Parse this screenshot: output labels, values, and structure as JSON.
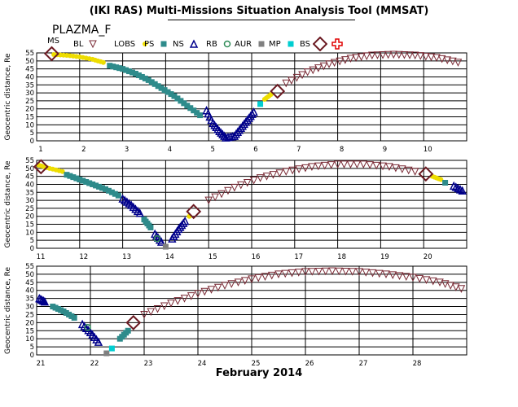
{
  "title": "(IKI RAS) Multi-Missions Situation Analysis Tool (MMSAT)",
  "subtitle": "PLAZMA_F",
  "legend": [
    {
      "label": "MS",
      "color": "#000000",
      "marker": "none"
    },
    {
      "label": "BL",
      "color": "#7a2a35",
      "marker": "tri-down"
    },
    {
      "label": "LOBS",
      "color": "#eedd00",
      "marker": "dot"
    },
    {
      "label": "PS",
      "color": "#2e8b8b",
      "marker": "square"
    },
    {
      "label": "NS",
      "color": "#00008b",
      "marker": "tri-up"
    },
    {
      "label": "RB",
      "color": "#2e8b57",
      "marker": "circle"
    },
    {
      "label": "AUR",
      "color": "#808080",
      "marker": "square"
    },
    {
      "label": "MP",
      "color": "#00ced1",
      "marker": "square"
    },
    {
      "label": "BS",
      "color": "#6b1a22",
      "marker": "diamond"
    },
    {
      "label": "",
      "color": "#e00000",
      "marker": "cross"
    }
  ],
  "chart_data": {
    "type": "scatter",
    "ylabel": "Geocentric distance, Re",
    "xlabel": "February 2014",
    "yticks": [
      0,
      5,
      10,
      15,
      20,
      25,
      30,
      35,
      40,
      45,
      50,
      55
    ],
    "ylim": [
      0,
      55
    ],
    "panels": [
      {
        "xlim": [
          1,
          11
        ],
        "xticks": [
          1,
          2,
          3,
          4,
          5,
          6,
          7,
          8,
          9,
          10
        ],
        "series": [
          {
            "name": "LOBS",
            "x": [
              1.4,
              1.7,
              2.0,
              2.3,
              2.55
            ],
            "y": [
              54,
              53.5,
              52.5,
              51,
              49
            ]
          },
          {
            "name": "PS",
            "x": [
              2.7,
              3.0,
              3.3,
              3.6,
              3.9,
              4.2,
              4.5,
              4.8
            ],
            "y": [
              47,
              45,
              42,
              38,
              33,
              28,
              22,
              16
            ]
          },
          {
            "name": "NS",
            "x": [
              4.95,
              5.1,
              5.25,
              5.4,
              5.6,
              5.75,
              5.9,
              6.05
            ],
            "y": [
              19,
              11,
              6,
              2,
              3,
              8,
              13,
              18
            ]
          },
          {
            "name": "MP",
            "x": [
              6.2
            ],
            "y": [
              23
            ]
          },
          {
            "name": "LOBS",
            "x": [
              6.3,
              6.45
            ],
            "y": [
              26,
              29
            ]
          },
          {
            "name": "BL",
            "x": [
              6.8,
              7.3,
              7.8,
              8.3,
              8.8,
              9.3,
              9.8,
              10.3,
              10.8
            ],
            "y": [
              36,
              43,
              48,
              51.5,
              53.5,
              54,
              53.5,
              52,
              49
            ]
          }
        ],
        "bs": [
          {
            "x": 1.35,
            "y": 54.5
          },
          {
            "x": 6.6,
            "y": 31
          }
        ]
      },
      {
        "xlim": [
          11,
          21
        ],
        "xticks": [
          11,
          12,
          13,
          14,
          15,
          16,
          17,
          18,
          19,
          20
        ],
        "series": [
          {
            "name": "LOBS",
            "x": [
              11.05,
              11.3,
              11.6
            ],
            "y": [
              52,
              50,
              48
            ]
          },
          {
            "name": "PS",
            "x": [
              11.7,
              12.0,
              12.3,
              12.6,
              12.9
            ],
            "y": [
              46,
              43,
              40,
              37,
              33
            ]
          },
          {
            "name": "NS",
            "x": [
              13.0,
              13.2,
              13.4
            ],
            "y": [
              31,
              27,
              22
            ]
          },
          {
            "name": "PS",
            "x": [
              13.5,
              13.65
            ],
            "y": [
              18,
              13
            ]
          },
          {
            "name": "NS",
            "x": [
              13.75,
              13.9
            ],
            "y": [
              9,
              4
            ]
          },
          {
            "name": "RB",
            "x": [
              13.8
            ],
            "y": [
              6
            ]
          },
          {
            "name": "AUR",
            "x": [
              14.0
            ],
            "y": [
              1
            ]
          },
          {
            "name": "NS",
            "x": [
              14.15,
              14.3,
              14.45
            ],
            "y": [
              6,
              12,
              17
            ]
          },
          {
            "name": "LOBS",
            "x": [
              14.55
            ],
            "y": [
              20
            ]
          },
          {
            "name": "BL",
            "x": [
              15.0,
              15.6,
              16.2,
              16.8,
              17.4,
              18.0,
              18.6,
              19.2,
              19.8
            ],
            "y": [
              30,
              38,
              44,
              48,
              51,
              52.5,
              52.5,
              51,
              48
            ]
          },
          {
            "name": "LOBS",
            "x": [
              20.2,
              20.4
            ],
            "y": [
              45,
              43
            ]
          },
          {
            "name": "PS",
            "x": [
              20.5
            ],
            "y": [
              41
            ]
          },
          {
            "name": "NS",
            "x": [
              20.7,
              20.9
            ],
            "y": [
              39,
              36
            ]
          }
        ],
        "bs": [
          {
            "x": 11.1,
            "y": 51
          },
          {
            "x": 14.65,
            "y": 23
          },
          {
            "x": 20.05,
            "y": 46.5
          }
        ]
      },
      {
        "xlim": [
          21,
          29
        ],
        "xticks": [
          21,
          22,
          23,
          24,
          25,
          26,
          27,
          28
        ],
        "series": [
          {
            "name": "NS",
            "x": [
              21.05,
              21.15
            ],
            "y": [
              35,
              33
            ]
          },
          {
            "name": "PS",
            "x": [
              21.3,
              21.5,
              21.7
            ],
            "y": [
              30,
              27,
              23
            ]
          },
          {
            "name": "NS",
            "x": [
              21.85,
              22.0,
              22.15
            ],
            "y": [
              19,
              14,
              8
            ]
          },
          {
            "name": "RB",
            "x": [
              21.95
            ],
            "y": [
              17
            ]
          },
          {
            "name": "AUR",
            "x": [
              22.3
            ],
            "y": [
              1
            ]
          },
          {
            "name": "MP",
            "x": [
              22.4
            ],
            "y": [
              4
            ]
          },
          {
            "name": "PS",
            "x": [
              22.55,
              22.7
            ],
            "y": [
              10,
              15
            ]
          },
          {
            "name": "BL",
            "x": [
              23.0,
              23.5,
              24.0,
              24.5,
              25.0,
              25.5,
              26.0,
              26.5,
              27.0,
              27.5,
              28.0,
              28.5,
              28.9
            ],
            "y": [
              25,
              32,
              38,
              43,
              47,
              50,
              51.5,
              52,
              51.5,
              50,
              48,
              45,
              41
            ]
          }
        ],
        "bs": [
          {
            "x": 22.8,
            "y": 20
          }
        ]
      }
    ]
  }
}
